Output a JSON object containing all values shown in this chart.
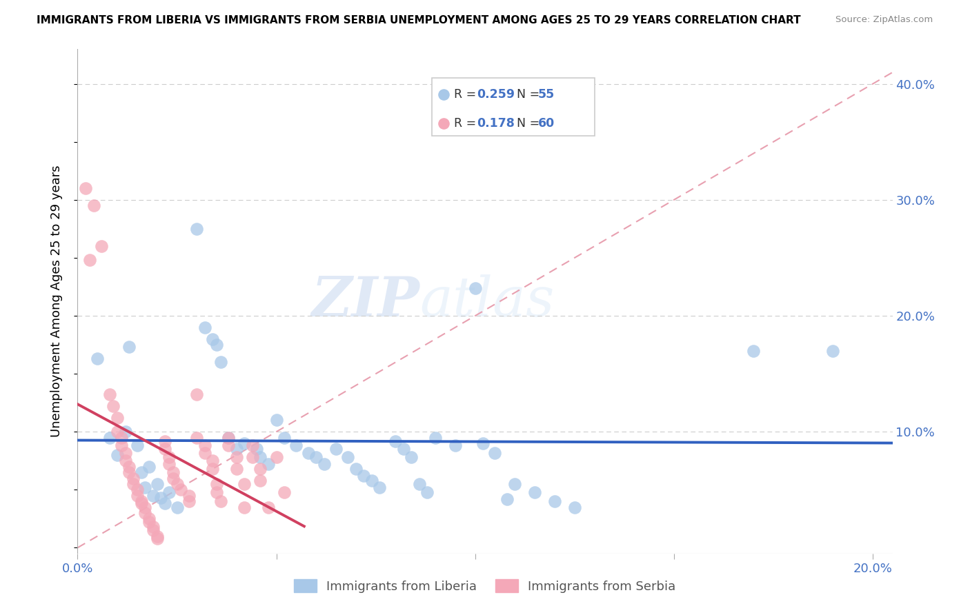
{
  "title": "IMMIGRANTS FROM LIBERIA VS IMMIGRANTS FROM SERBIA UNEMPLOYMENT AMONG AGES 25 TO 29 YEARS CORRELATION CHART",
  "source": "Source: ZipAtlas.com",
  "ylabel": "Unemployment Among Ages 25 to 29 years",
  "xlim": [
    0.0,
    0.205
  ],
  "ylim": [
    -0.005,
    0.43
  ],
  "x_ticks": [
    0.0,
    0.05,
    0.1,
    0.15,
    0.2
  ],
  "x_tick_labels": [
    "0.0%",
    "",
    "",
    "",
    "20.0%"
  ],
  "y_ticks": [
    0.0,
    0.1,
    0.2,
    0.3,
    0.4
  ],
  "y_tick_labels": [
    "",
    "10.0%",
    "20.0%",
    "30.0%",
    "40.0%"
  ],
  "liberia_color": "#a8c8e8",
  "serbia_color": "#f4a8b8",
  "liberia_R": "0.259",
  "liberia_N": "55",
  "serbia_R": "0.178",
  "serbia_N": "60",
  "liberia_line_color": "#3060c0",
  "serbia_line_color": "#d04060",
  "diagonal_color": "#e8a0b0",
  "watermark_zip": "ZIP",
  "watermark_atlas": "atlas",
  "liberia_scatter": [
    [
      0.005,
      0.163
    ],
    [
      0.008,
      0.095
    ],
    [
      0.01,
      0.08
    ],
    [
      0.012,
      0.1
    ],
    [
      0.013,
      0.173
    ],
    [
      0.015,
      0.088
    ],
    [
      0.016,
      0.065
    ],
    [
      0.017,
      0.052
    ],
    [
      0.018,
      0.07
    ],
    [
      0.019,
      0.045
    ],
    [
      0.02,
      0.055
    ],
    [
      0.021,
      0.043
    ],
    [
      0.022,
      0.038
    ],
    [
      0.023,
      0.048
    ],
    [
      0.025,
      0.035
    ],
    [
      0.03,
      0.275
    ],
    [
      0.032,
      0.19
    ],
    [
      0.034,
      0.18
    ],
    [
      0.035,
      0.175
    ],
    [
      0.036,
      0.16
    ],
    [
      0.038,
      0.095
    ],
    [
      0.04,
      0.085
    ],
    [
      0.042,
      0.09
    ],
    [
      0.045,
      0.085
    ],
    [
      0.046,
      0.078
    ],
    [
      0.048,
      0.072
    ],
    [
      0.05,
      0.11
    ],
    [
      0.052,
      0.095
    ],
    [
      0.055,
      0.088
    ],
    [
      0.058,
      0.082
    ],
    [
      0.06,
      0.078
    ],
    [
      0.062,
      0.072
    ],
    [
      0.065,
      0.085
    ],
    [
      0.068,
      0.078
    ],
    [
      0.07,
      0.068
    ],
    [
      0.072,
      0.062
    ],
    [
      0.074,
      0.058
    ],
    [
      0.076,
      0.052
    ],
    [
      0.08,
      0.092
    ],
    [
      0.082,
      0.085
    ],
    [
      0.084,
      0.078
    ],
    [
      0.086,
      0.055
    ],
    [
      0.088,
      0.048
    ],
    [
      0.09,
      0.095
    ],
    [
      0.095,
      0.088
    ],
    [
      0.1,
      0.224
    ],
    [
      0.102,
      0.09
    ],
    [
      0.105,
      0.082
    ],
    [
      0.108,
      0.042
    ],
    [
      0.11,
      0.055
    ],
    [
      0.115,
      0.048
    ],
    [
      0.12,
      0.04
    ],
    [
      0.125,
      0.035
    ],
    [
      0.17,
      0.17
    ],
    [
      0.19,
      0.17
    ]
  ],
  "serbia_scatter": [
    [
      0.002,
      0.31
    ],
    [
      0.004,
      0.295
    ],
    [
      0.006,
      0.26
    ],
    [
      0.003,
      0.248
    ],
    [
      0.008,
      0.132
    ],
    [
      0.009,
      0.122
    ],
    [
      0.01,
      0.112
    ],
    [
      0.01,
      0.1
    ],
    [
      0.011,
      0.095
    ],
    [
      0.011,
      0.088
    ],
    [
      0.012,
      0.082
    ],
    [
      0.012,
      0.075
    ],
    [
      0.013,
      0.07
    ],
    [
      0.013,
      0.065
    ],
    [
      0.014,
      0.06
    ],
    [
      0.014,
      0.055
    ],
    [
      0.015,
      0.05
    ],
    [
      0.015,
      0.045
    ],
    [
      0.016,
      0.04
    ],
    [
      0.016,
      0.038
    ],
    [
      0.017,
      0.035
    ],
    [
      0.017,
      0.03
    ],
    [
      0.018,
      0.025
    ],
    [
      0.018,
      0.022
    ],
    [
      0.019,
      0.018
    ],
    [
      0.019,
      0.015
    ],
    [
      0.02,
      0.01
    ],
    [
      0.02,
      0.008
    ],
    [
      0.022,
      0.092
    ],
    [
      0.022,
      0.085
    ],
    [
      0.023,
      0.078
    ],
    [
      0.023,
      0.072
    ],
    [
      0.024,
      0.065
    ],
    [
      0.024,
      0.06
    ],
    [
      0.025,
      0.055
    ],
    [
      0.026,
      0.05
    ],
    [
      0.028,
      0.045
    ],
    [
      0.028,
      0.04
    ],
    [
      0.03,
      0.132
    ],
    [
      0.03,
      0.095
    ],
    [
      0.032,
      0.088
    ],
    [
      0.032,
      0.082
    ],
    [
      0.034,
      0.075
    ],
    [
      0.034,
      0.068
    ],
    [
      0.035,
      0.055
    ],
    [
      0.035,
      0.048
    ],
    [
      0.036,
      0.04
    ],
    [
      0.038,
      0.095
    ],
    [
      0.038,
      0.088
    ],
    [
      0.04,
      0.078
    ],
    [
      0.04,
      0.068
    ],
    [
      0.042,
      0.055
    ],
    [
      0.042,
      0.035
    ],
    [
      0.044,
      0.088
    ],
    [
      0.044,
      0.078
    ],
    [
      0.046,
      0.068
    ],
    [
      0.046,
      0.058
    ],
    [
      0.048,
      0.035
    ],
    [
      0.05,
      0.078
    ],
    [
      0.052,
      0.048
    ]
  ]
}
